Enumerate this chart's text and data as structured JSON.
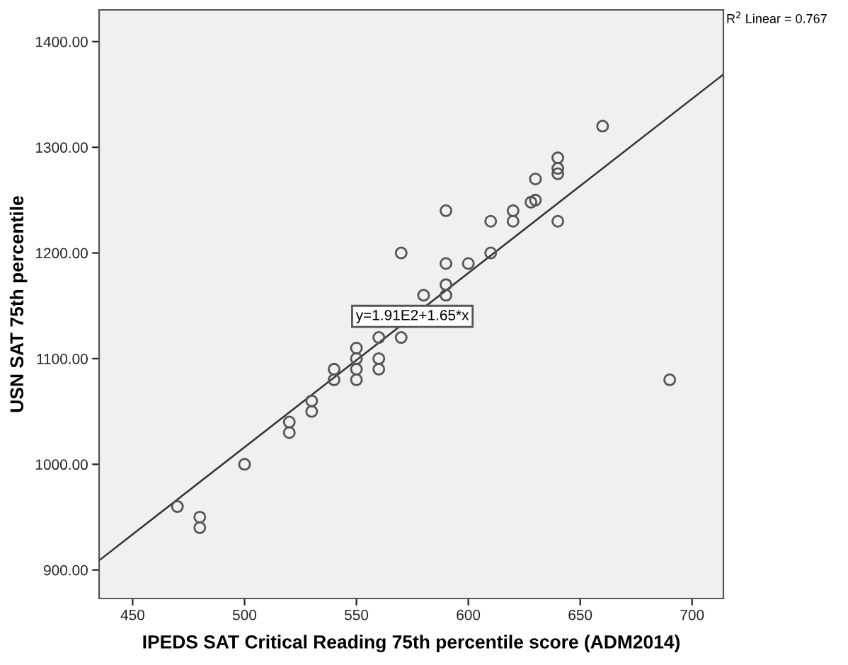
{
  "chart_data": {
    "type": "scatter",
    "xlabel": "IPEDS SAT Critical Reading 75th percentile score (ADM2014)",
    "ylabel": "USN SAT 75th percentile",
    "x": [
      470,
      480,
      480,
      500,
      520,
      520,
      530,
      530,
      540,
      540,
      550,
      550,
      550,
      550,
      560,
      560,
      560,
      570,
      570,
      580,
      590,
      590,
      590,
      590,
      600,
      610,
      610,
      620,
      620,
      628,
      630,
      630,
      640,
      640,
      640,
      640,
      660,
      690
    ],
    "series": [
      {
        "color": "#555555",
        "marker": "circle",
        "values": [
          960,
          950,
          940,
          1000,
          1040,
          1030,
          1060,
          1050,
          1090,
          1080,
          1110,
          1100,
          1090,
          1080,
          1120,
          1100,
          1090,
          1120,
          1200,
          1160,
          1240,
          1190,
          1170,
          1160,
          1190,
          1230,
          1200,
          1240,
          1230,
          1248,
          1250,
          1270,
          1290,
          1280,
          1275,
          1230,
          1320,
          1080
        ]
      },
      {
        "type": "line",
        "color": "#333333",
        "x": [
          435,
          714
        ],
        "values": [
          909,
          1369
        ],
        "line_style": "solid",
        "marker": "none"
      }
    ],
    "xlim": [
      435,
      714
    ],
    "xticks": [
      450,
      500,
      550,
      600,
      650,
      700
    ],
    "ylim": [
      873,
      1430
    ],
    "yticks": [
      {
        "value": 900,
        "label": "900.00"
      },
      {
        "value": 1000,
        "label": "1000.00"
      },
      {
        "value": 1100,
        "label": "1100.00"
      },
      {
        "value": 1200,
        "label": "1200.00"
      },
      {
        "value": 1300,
        "label": "1300.00"
      },
      {
        "value": 1400,
        "label": "1400.00"
      }
    ],
    "grid": false,
    "legend": false,
    "annotations": [
      {
        "text": "y=1.91E2+1.65*x",
        "x": 575,
        "y": 1140
      },
      "R$^{2}$ Linear = 0.767"
    ]
  }
}
